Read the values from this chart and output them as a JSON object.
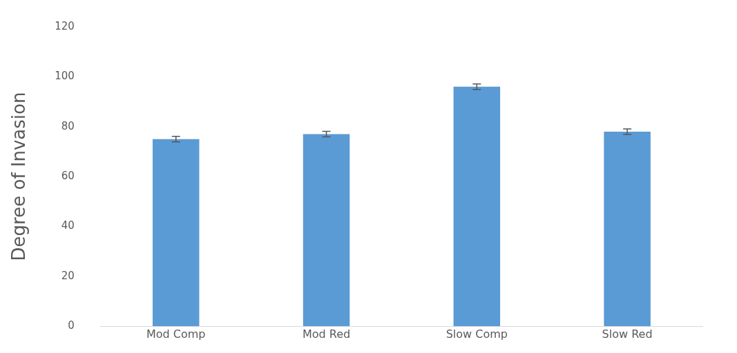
{
  "chart_data": {
    "type": "bar",
    "ylabel": "Degree of Invasion",
    "categories": [
      "Mod Comp",
      "Mod Red",
      "Slow Comp",
      "Slow Red"
    ],
    "values": [
      75,
      77,
      96,
      78
    ],
    "errors": [
      1.1,
      1.1,
      1.1,
      1.1
    ],
    "color": "#5b9bd5",
    "ylim": [
      0,
      120
    ],
    "yticks": [
      0,
      20,
      40,
      60,
      80,
      100,
      120
    ],
    "grid": false,
    "legend": false
  }
}
